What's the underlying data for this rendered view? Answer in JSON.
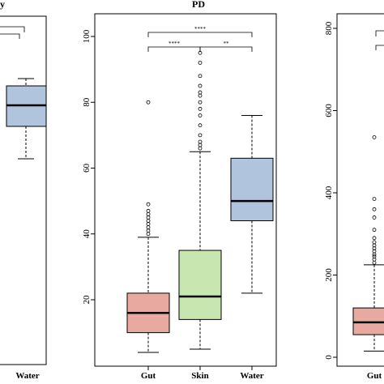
{
  "chart_data": [
    {
      "type": "box",
      "title": "y",
      "categories": [
        "Water"
      ],
      "colors": [
        "#b0c4de"
      ],
      "boxes": [
        {
          "category": "Water",
          "whisker_low": null,
          "q1": null,
          "median": null,
          "q3": null,
          "whisker_high": null,
          "outliers": []
        }
      ],
      "significance": [],
      "partial": "cropped at left edge; y-axis not visible"
    },
    {
      "type": "box",
      "title": "PD",
      "categories": [
        "Gut",
        "Skin",
        "Water"
      ],
      "colors": [
        "#e8aaa0",
        "#c8e6b0",
        "#b0c4de"
      ],
      "ylim": [
        0,
        105
      ],
      "yticks": [
        20,
        40,
        60,
        80,
        100
      ],
      "boxes": [
        {
          "category": "Gut",
          "whisker_low": 4,
          "q1": 10,
          "median": 16,
          "q3": 22,
          "whisker_high": 39,
          "outliers": [
            40,
            41,
            42,
            43,
            44,
            45,
            46,
            47,
            49,
            80
          ]
        },
        {
          "category": "Skin",
          "whisker_low": 5,
          "q1": 14,
          "median": 21,
          "q3": 35,
          "whisker_high": 65,
          "outliers": [
            66,
            67,
            68,
            70,
            73,
            76,
            78,
            80,
            82,
            83,
            85,
            88,
            92,
            95
          ]
        },
        {
          "category": "Water",
          "whisker_low": 22,
          "q1": 44,
          "median": 50,
          "q3": 63,
          "whisker_high": 76,
          "outliers": []
        }
      ],
      "significance": [
        {
          "from": "Gut",
          "to": "Water",
          "label": "****",
          "level": 2
        },
        {
          "from": "Gut",
          "to": "Skin",
          "label": "****",
          "level": 1
        },
        {
          "from": "Skin",
          "to": "Water",
          "label": "**",
          "level": 1
        }
      ]
    },
    {
      "type": "box",
      "title": "",
      "categories": [
        "Gut"
      ],
      "colors": [
        "#e8aaa0"
      ],
      "ylim": [
        0,
        820
      ],
      "yticks": [
        0,
        200,
        400,
        600,
        800
      ],
      "boxes": [
        {
          "category": "Gut",
          "whisker_low": 15,
          "q1": 55,
          "median": 85,
          "q3": 120,
          "whisker_high": 225,
          "outliers": [
            230,
            238,
            245,
            250,
            258,
            265,
            272,
            280,
            290,
            310,
            340,
            360,
            385,
            535
          ]
        }
      ],
      "partial": "cropped at right edge"
    }
  ]
}
